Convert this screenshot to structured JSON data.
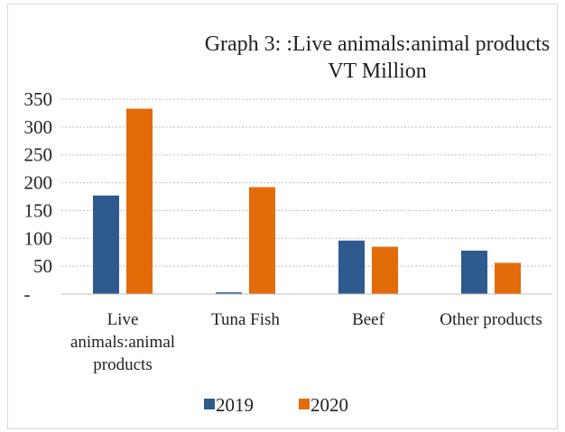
{
  "chart_data": {
    "type": "bar",
    "title_lines": [
      "Graph 3: :Live animals:animal products",
      "VT Million"
    ],
    "categories": [
      [
        "Live",
        "animals:animal",
        "products"
      ],
      [
        "Tuna Fish"
      ],
      [
        "Beef"
      ],
      [
        "Other products"
      ]
    ],
    "series": [
      {
        "name": "2019",
        "color": "#2e5a8e",
        "values": [
          177,
          3,
          96,
          78
        ]
      },
      {
        "name": "2020",
        "color": "#e36c0a",
        "values": [
          333,
          192,
          85,
          56
        ]
      }
    ],
    "y_ticks": [
      {
        "value": 0,
        "label": "-"
      },
      {
        "value": 50,
        "label": "50"
      },
      {
        "value": 100,
        "label": "100"
      },
      {
        "value": 150,
        "label": "150"
      },
      {
        "value": 200,
        "label": "200"
      },
      {
        "value": 250,
        "label": "250"
      },
      {
        "value": 300,
        "label": "300"
      },
      {
        "value": 350,
        "label": "350"
      }
    ],
    "ylim": [
      0,
      350
    ],
    "grid": true,
    "legend_position": "bottom",
    "xlabel": "",
    "ylabel": ""
  }
}
